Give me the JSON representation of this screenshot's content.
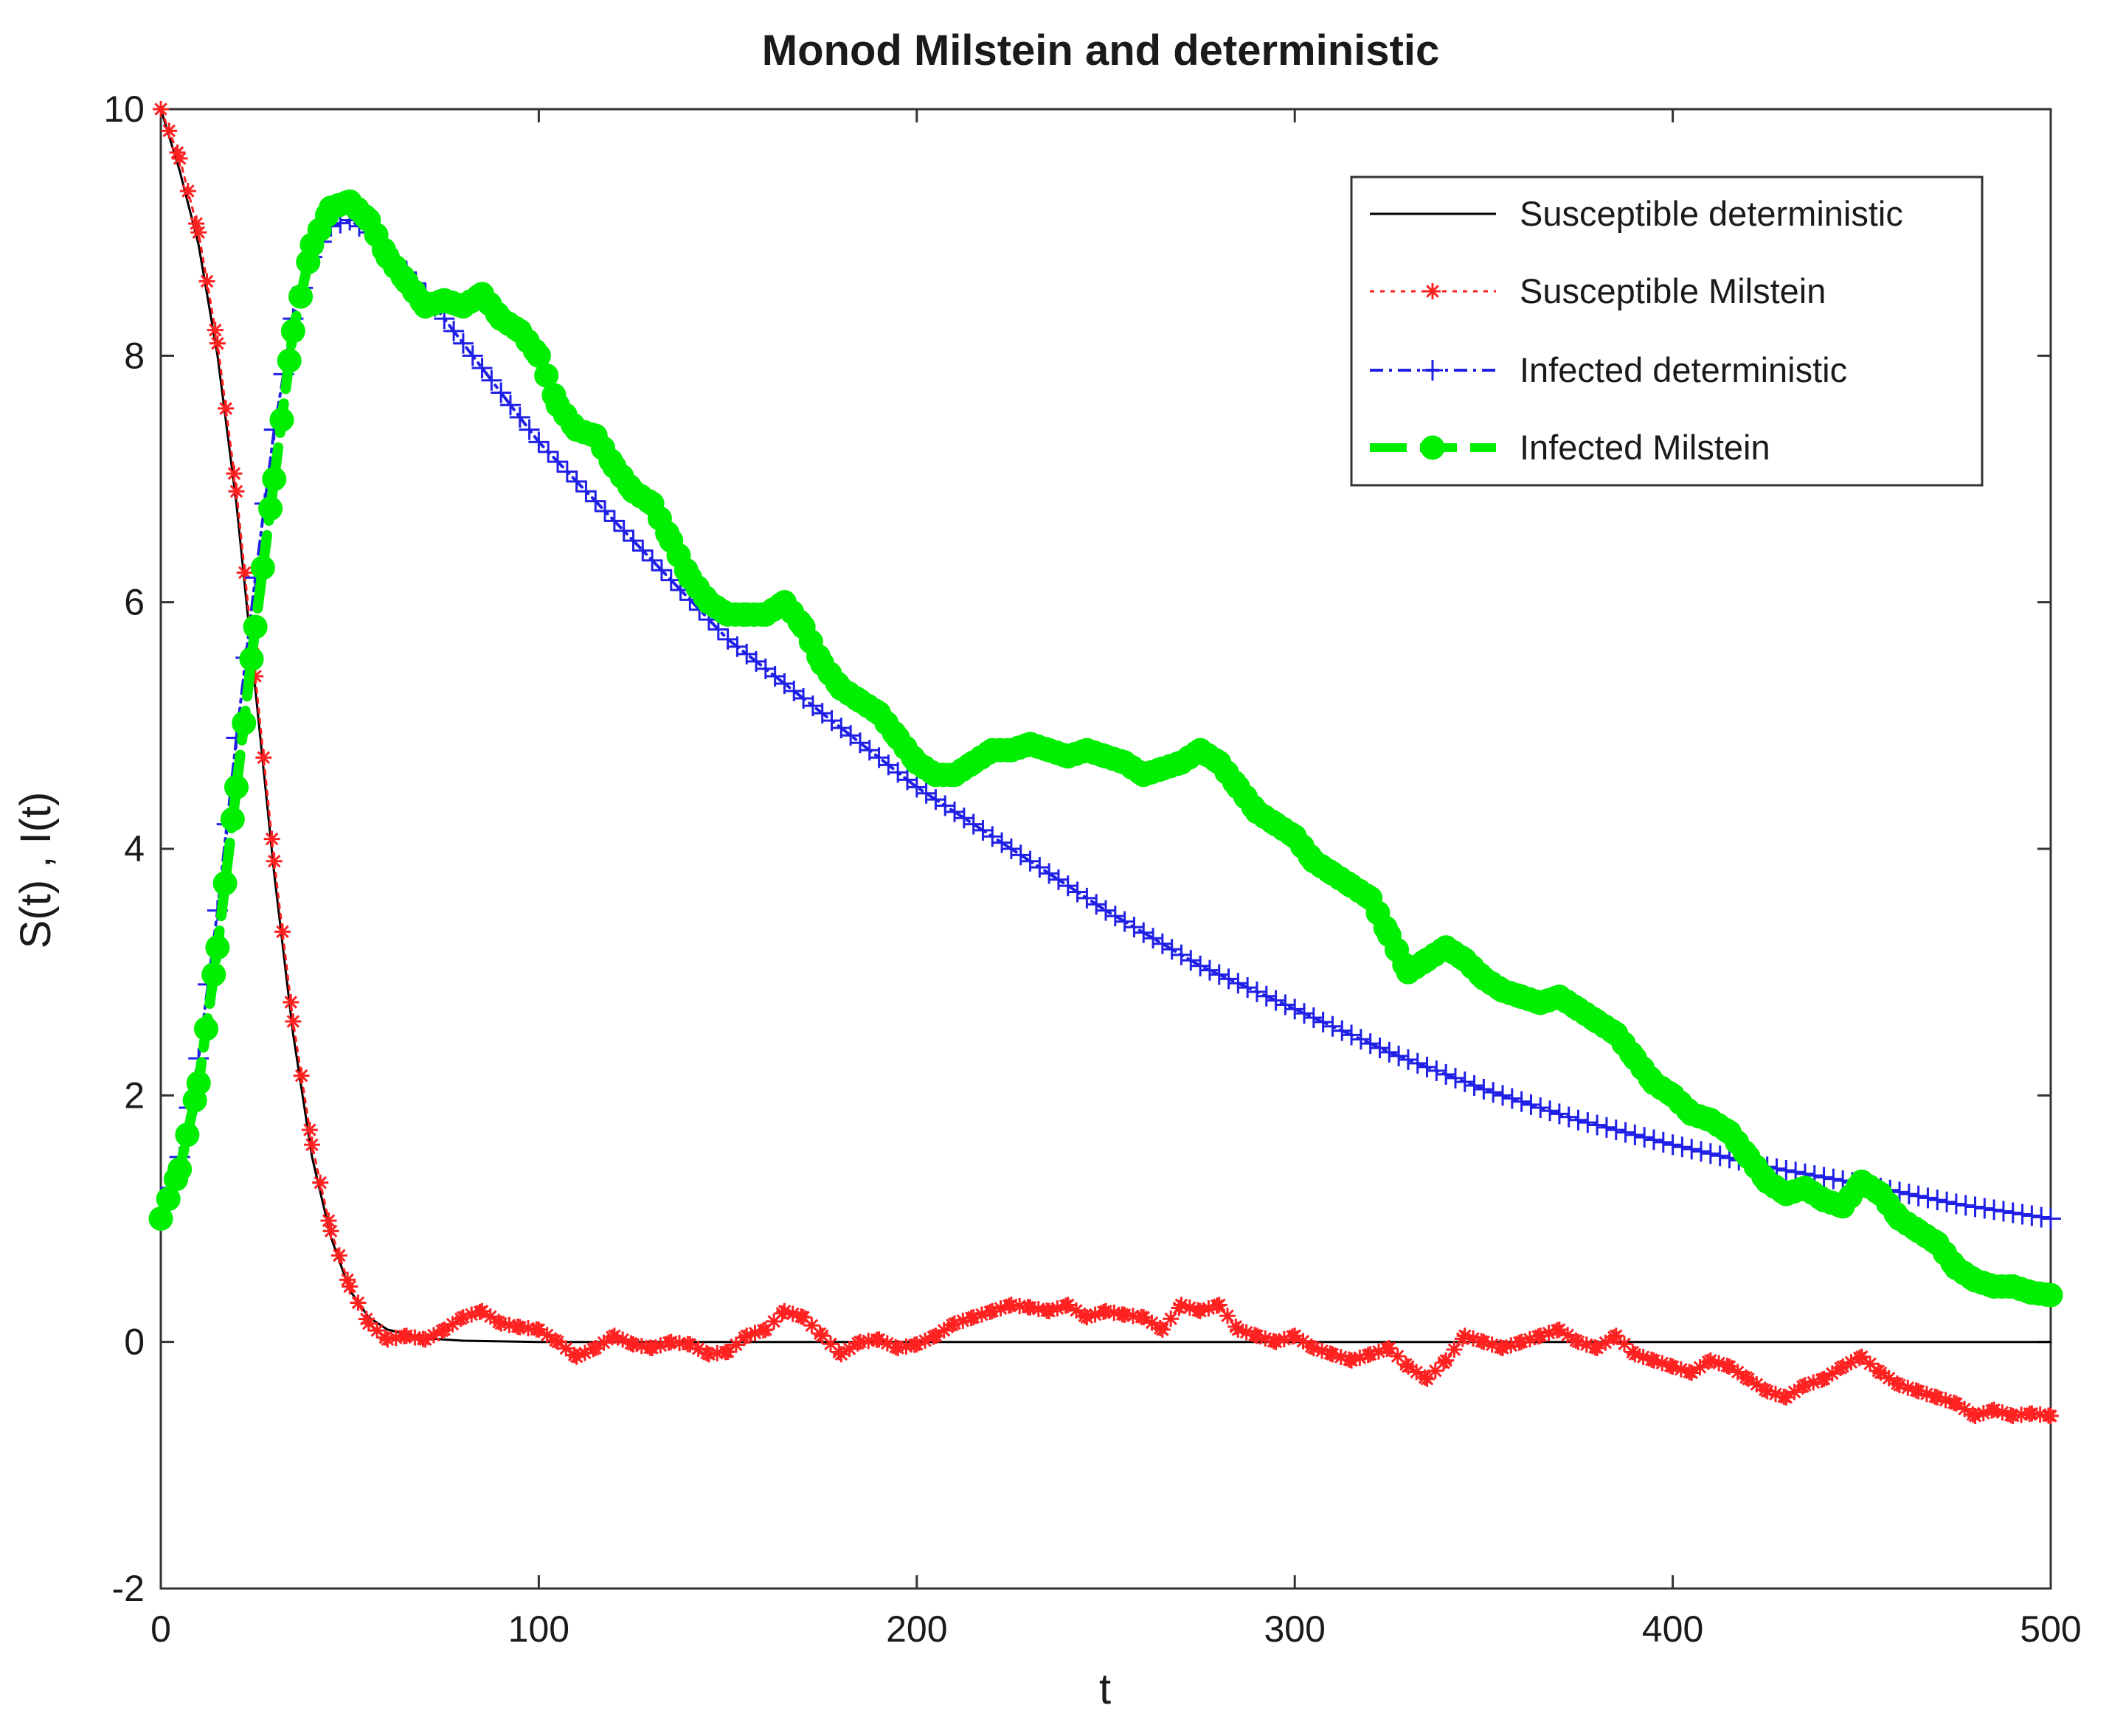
{
  "chart_data": {
    "type": "line",
    "title": "Monod Milstein and deterministic",
    "xlabel": "t",
    "ylabel": "S(t) , I(t)",
    "xlim": [
      0,
      500
    ],
    "ylim": [
      -2,
      10
    ],
    "xticks": [
      0,
      100,
      200,
      300,
      400,
      500
    ],
    "yticks": [
      -2,
      0,
      2,
      4,
      6,
      8,
      10
    ],
    "xtick_labels": [
      "0",
      "100",
      "200",
      "300",
      "400",
      "500"
    ],
    "ytick_labels": [
      "-2",
      "0",
      "2",
      "4",
      "6",
      "8",
      "10"
    ],
    "grid": false,
    "legend_position": "top-right",
    "series": [
      {
        "name": "Susceptible deterministic",
        "color": "#000000",
        "line_style": "solid",
        "marker": "none",
        "x": [
          0,
          5,
          10,
          15,
          20,
          25,
          30,
          35,
          40,
          45,
          50,
          55,
          60,
          70,
          80,
          100,
          150,
          200,
          300,
          400,
          500
        ],
        "values": [
          10,
          9.5,
          8.9,
          8.0,
          6.8,
          5.3,
          3.8,
          2.5,
          1.5,
          0.85,
          0.42,
          0.2,
          0.1,
          0.03,
          0.01,
          0.0,
          0.0,
          0.0,
          0.0,
          0.0,
          0.0
        ]
      },
      {
        "name": "Susceptible Milstein",
        "color": "#ff2020",
        "line_style": "dotted",
        "marker": "asterisk",
        "x": [
          0,
          5,
          10,
          15,
          20,
          25,
          30,
          35,
          40,
          45,
          50,
          55,
          60,
          65,
          70,
          75,
          80,
          85,
          90,
          95,
          100,
          105,
          110,
          115,
          120,
          125,
          130,
          135,
          140,
          145,
          150,
          155,
          160,
          165,
          170,
          175,
          180,
          185,
          190,
          195,
          200,
          205,
          210,
          215,
          220,
          225,
          230,
          235,
          240,
          245,
          250,
          255,
          260,
          265,
          270,
          275,
          280,
          285,
          290,
          295,
          300,
          305,
          310,
          315,
          320,
          325,
          330,
          335,
          340,
          345,
          350,
          355,
          360,
          365,
          370,
          375,
          380,
          385,
          390,
          395,
          400,
          405,
          410,
          415,
          420,
          425,
          430,
          435,
          440,
          445,
          450,
          455,
          460,
          465,
          470,
          475,
          480,
          485,
          490,
          495,
          500
        ],
        "values": [
          10,
          9.6,
          9.0,
          8.1,
          6.9,
          5.4,
          3.9,
          2.6,
          1.6,
          0.9,
          0.45,
          0.15,
          0.02,
          0.05,
          0.02,
          0.1,
          0.2,
          0.25,
          0.15,
          0.12,
          0.1,
          0.0,
          -0.12,
          -0.05,
          0.05,
          -0.02,
          -0.05,
          0.0,
          -0.02,
          -0.1,
          -0.08,
          0.05,
          0.1,
          0.25,
          0.2,
          0.05,
          -0.1,
          0.0,
          0.02,
          -0.05,
          -0.02,
          0.05,
          0.15,
          0.2,
          0.25,
          0.3,
          0.28,
          0.25,
          0.3,
          0.2,
          0.25,
          0.22,
          0.2,
          0.1,
          0.3,
          0.25,
          0.3,
          0.1,
          0.05,
          0.0,
          0.05,
          -0.05,
          -0.1,
          -0.15,
          -0.1,
          -0.05,
          -0.2,
          -0.3,
          -0.15,
          0.05,
          0.0,
          -0.05,
          0.0,
          0.05,
          0.1,
          0.0,
          -0.05,
          0.05,
          -0.1,
          -0.15,
          -0.2,
          -0.25,
          -0.15,
          -0.2,
          -0.3,
          -0.4,
          -0.45,
          -0.35,
          -0.3,
          -0.2,
          -0.12,
          -0.25,
          -0.35,
          -0.4,
          -0.45,
          -0.5,
          -0.6,
          -0.55,
          -0.6,
          -0.58,
          -0.6
        ]
      },
      {
        "name": "Infected deterministic",
        "color": "#2020e6",
        "line_style": "dashdot",
        "marker": "plus",
        "x": [
          0,
          5,
          10,
          15,
          20,
          25,
          30,
          35,
          40,
          45,
          50,
          55,
          60,
          70,
          80,
          90,
          100,
          125,
          150,
          175,
          200,
          225,
          250,
          275,
          300,
          325,
          350,
          375,
          400,
          425,
          450,
          475,
          500
        ],
        "values": [
          1.0,
          1.5,
          2.3,
          3.5,
          4.9,
          6.2,
          7.4,
          8.3,
          8.8,
          9.05,
          9.1,
          9.0,
          8.85,
          8.5,
          8.1,
          7.7,
          7.3,
          6.5,
          5.7,
          5.1,
          4.5,
          4.0,
          3.5,
          3.05,
          2.7,
          2.35,
          2.05,
          1.8,
          1.6,
          1.42,
          1.28,
          1.12,
          1.0
        ]
      },
      {
        "name": "Infected Milstein",
        "color": "#00ee00",
        "line_style": "dashed",
        "marker": "circle",
        "x": [
          0,
          5,
          10,
          15,
          20,
          25,
          30,
          35,
          40,
          45,
          50,
          55,
          60,
          65,
          70,
          75,
          80,
          85,
          90,
          95,
          100,
          105,
          110,
          115,
          120,
          125,
          130,
          135,
          140,
          145,
          150,
          155,
          160,
          165,
          170,
          175,
          180,
          185,
          190,
          195,
          200,
          205,
          210,
          215,
          220,
          225,
          230,
          235,
          240,
          245,
          250,
          255,
          260,
          265,
          270,
          275,
          280,
          285,
          290,
          295,
          300,
          305,
          310,
          315,
          320,
          325,
          330,
          335,
          340,
          345,
          350,
          355,
          360,
          365,
          370,
          375,
          380,
          385,
          390,
          395,
          400,
          405,
          410,
          415,
          420,
          425,
          430,
          435,
          440,
          445,
          450,
          455,
          460,
          465,
          470,
          475,
          480,
          485,
          490,
          495,
          500
        ],
        "values": [
          1.0,
          1.4,
          2.1,
          3.2,
          4.5,
          5.8,
          7.0,
          8.2,
          8.9,
          9.2,
          9.25,
          9.1,
          8.8,
          8.6,
          8.4,
          8.45,
          8.4,
          8.5,
          8.3,
          8.2,
          8.0,
          7.6,
          7.4,
          7.35,
          7.1,
          6.9,
          6.8,
          6.5,
          6.2,
          6.0,
          5.9,
          5.9,
          5.9,
          6.0,
          5.8,
          5.5,
          5.3,
          5.2,
          5.1,
          4.9,
          4.7,
          4.6,
          4.6,
          4.7,
          4.8,
          4.8,
          4.85,
          4.8,
          4.75,
          4.8,
          4.75,
          4.7,
          4.6,
          4.65,
          4.7,
          4.8,
          4.7,
          4.5,
          4.3,
          4.2,
          4.1,
          3.9,
          3.8,
          3.7,
          3.6,
          3.3,
          3.0,
          3.1,
          3.2,
          3.1,
          2.95,
          2.85,
          2.8,
          2.75,
          2.8,
          2.7,
          2.6,
          2.5,
          2.3,
          2.1,
          2.0,
          1.85,
          1.8,
          1.7,
          1.5,
          1.3,
          1.2,
          1.25,
          1.15,
          1.1,
          1.3,
          1.2,
          1.0,
          0.9,
          0.8,
          0.6,
          0.5,
          0.45,
          0.45,
          0.4,
          0.38
        ]
      }
    ]
  }
}
